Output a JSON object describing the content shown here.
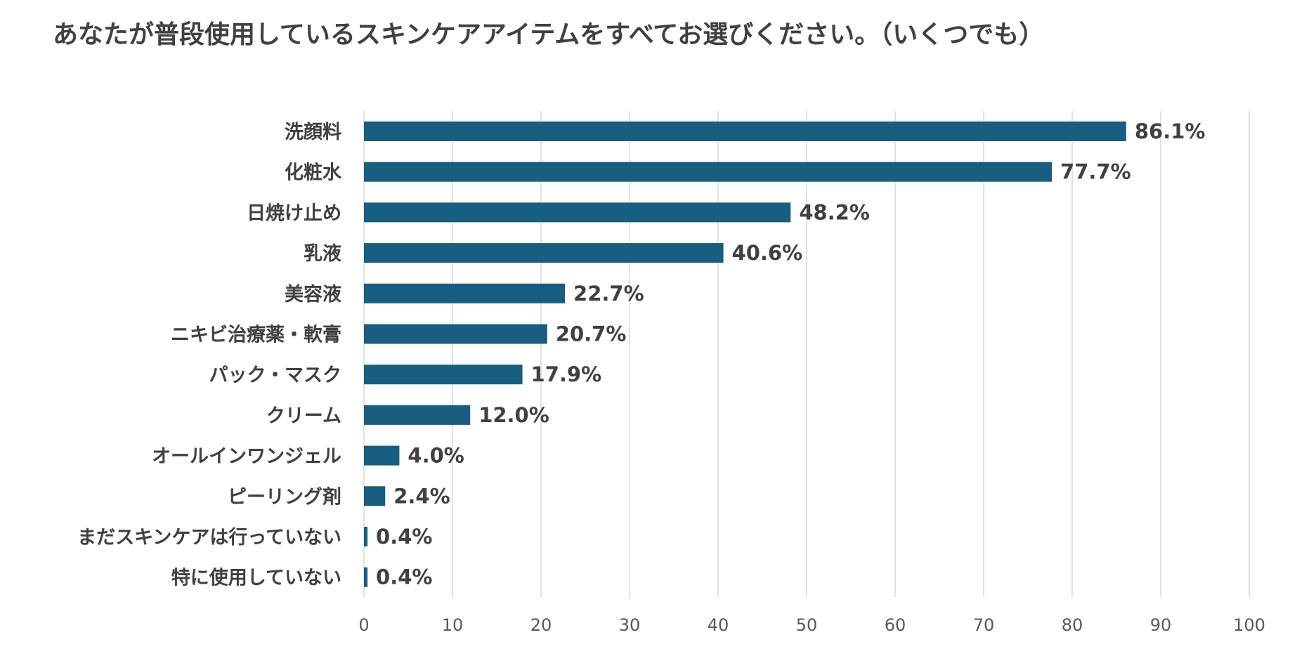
{
  "chart_data": {
    "type": "bar",
    "orientation": "horizontal",
    "title": "あなたが普段使用しているスキンケアアイテムをすべてお選びください。（いくつでも）",
    "categories": [
      "洗顔料",
      "化粧水",
      "日焼け止め",
      "乳液",
      "美容液",
      "ニキビ治療薬・軟膏",
      "パック・マスク",
      "クリーム",
      "オールインワンジェル",
      "ピーリング剤",
      "まだスキンケアは行っていない",
      "特に使用していない"
    ],
    "values": [
      86.1,
      77.7,
      48.2,
      40.6,
      22.7,
      20.7,
      17.9,
      12.0,
      4.0,
      2.4,
      0.4,
      0.4
    ],
    "data_labels": [
      "86.1%",
      "77.7%",
      "48.2%",
      "40.6%",
      "22.7%",
      "20.7%",
      "17.9%",
      "12.0%",
      "4.0%",
      "2.4%",
      "0.4%",
      "0.4%"
    ],
    "xlim": [
      0,
      100
    ],
    "xticks": [
      0,
      10,
      20,
      30,
      40,
      50,
      60,
      70,
      80,
      90,
      100
    ],
    "xtick_labels": [
      "0",
      "10",
      "20",
      "30",
      "40",
      "50",
      "60",
      "70",
      "80",
      "90",
      "100"
    ],
    "xlabel": "",
    "ylabel": "",
    "grid": "vertical",
    "legend": "none",
    "colors": {
      "bar": "#175e80",
      "grid": "#d9d9d9",
      "text": "#404040",
      "tick_text": "#595959"
    }
  }
}
